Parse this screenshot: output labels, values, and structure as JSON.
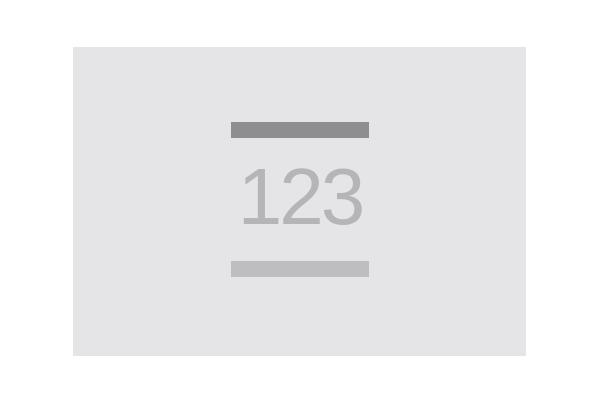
{
  "placeholder": {
    "number_text": "123",
    "colors": {
      "background": "#ffffff",
      "tile": "#e5e5e7",
      "top_bar": "#8e8e90",
      "number": "#b5b5b7",
      "bottom_bar": "#bebec0"
    },
    "icon": "number-placeholder-icon"
  }
}
